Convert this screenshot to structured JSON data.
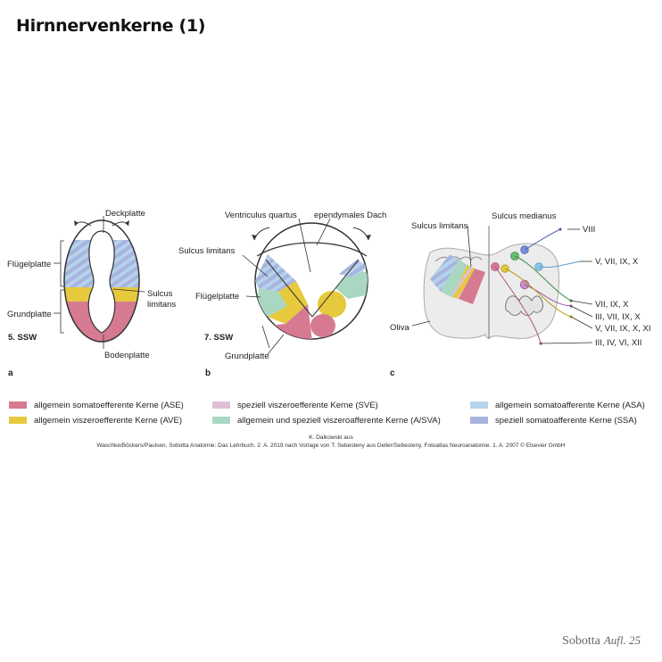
{
  "page": {
    "title": "Hirnnervenkerne (1)"
  },
  "colors": {
    "ASE": "#d67a92",
    "SVE": "#e0bfd6",
    "AVE": "#e6c93c",
    "ASVA": "#a9d7c2",
    "ASA": "#b5d3ea",
    "SSA": "#a8b3e0"
  },
  "panel_a": {
    "letter": "a",
    "stage": "5. SSW",
    "labels": {
      "deckplatte": "Deckplatte",
      "fluegelplatte": "Flügelplatte",
      "sulcus": "Sulcus",
      "limitans": "limitans",
      "grundplatte": "Grundplatte",
      "bodenplatte": "Bodenplatte"
    }
  },
  "panel_b": {
    "letter": "b",
    "stage": "7. SSW",
    "labels": {
      "ventriculus": "Ventriculus quartus",
      "ependymales_dach": "ependymales Dach",
      "sulcus_limitans": "Sulcus limitans",
      "fluegelplatte": "Flügelplatte",
      "grundplatte": "Grundplatte"
    }
  },
  "panel_c": {
    "letter": "c",
    "labels": {
      "sulcus_limitans": "Sulcus limitans",
      "sulcus_medianus": "Sulcus medianus",
      "oliva": "Oliva"
    },
    "nerve_labels": [
      "VIII",
      "V, VII, IX, X",
      "VII, IX, X",
      "III, VII, IX, X",
      "V, VII, IX, X, XI",
      "III, IV, VI, XII"
    ]
  },
  "legend": [
    {
      "label": "allgemein somatoefferente Kerne (ASE)",
      "color": "#d67a92"
    },
    {
      "label": "speziell viszeroefferente Kerne (SVE)",
      "color": "#e0bfd6"
    },
    {
      "label": "allgemein somatoafferente Kerne (ASA)",
      "color": "#b5d3ea"
    },
    {
      "label": "allgemein viszeroefferente Kerne (AVE)",
      "color": "#e6c93c"
    },
    {
      "label": "allgemein und speziell viszeroafferente Kerne (A/SVA)",
      "color": "#a9d7c2"
    },
    {
      "label": "speziell somatoafferente Kerne (SSA)",
      "color": "#a8b3e0"
    }
  ],
  "credit": {
    "line1": "K. Dalkowski aus",
    "line2": "Waschke/Böckers/Paulsen, Sobotta Anatomie: Das Lehrbuch. 2. A. 2019 nach Vorlage von T. Sebesteny aus Deller/Sebesteny. Fotoatlas Neuroanatomie. 1. A. 2007 © Elsevier GmbH"
  },
  "footer": {
    "brand": "Sobotta",
    "edition": "Aufl. 25"
  }
}
